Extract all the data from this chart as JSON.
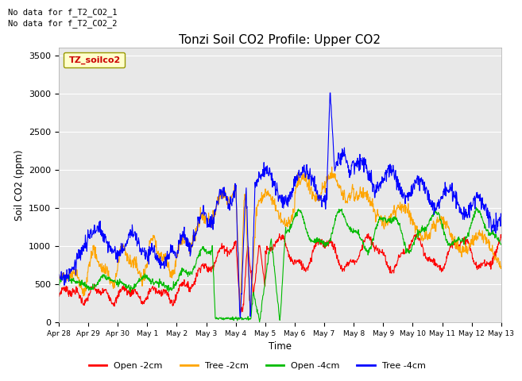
{
  "title": "Tonzi Soil CO2 Profile: Upper CO2",
  "ylabel": "Soil CO2 (ppm)",
  "xlabel": "Time",
  "annotation1": "No data for f_T2_CO2_1",
  "annotation2": "No data for f_T2_CO2_2",
  "legend_label": "TZ_soilco2",
  "ylim": [
    0,
    3600
  ],
  "yticks": [
    0,
    500,
    1000,
    1500,
    2000,
    2500,
    3000,
    3500
  ],
  "series_labels": [
    "Open -2cm",
    "Tree -2cm",
    "Open -4cm",
    "Tree -4cm"
  ],
  "series_colors": [
    "#ff0000",
    "#ffa500",
    "#00bb00",
    "#0000ff"
  ],
  "fig_bg_color": "#ffffff",
  "plot_bg_color": "#e8e8e8",
  "grid_color": "#ffffff",
  "num_points": 1200,
  "x_start": 0.0,
  "x_end": 15.0,
  "xtick_labels": [
    "Apr 28",
    "Apr 29",
    "Apr 30",
    "May 1",
    "May 2",
    "May 3",
    "May 4",
    "May 5",
    "May 6",
    "May 7",
    "May 8",
    "May 9",
    "May 10",
    "May 11",
    "May 12",
    "May 13"
  ],
  "xtick_pos": [
    0,
    1,
    2,
    3,
    4,
    5,
    6,
    7,
    8,
    9,
    10,
    11,
    12,
    13,
    14,
    15
  ]
}
